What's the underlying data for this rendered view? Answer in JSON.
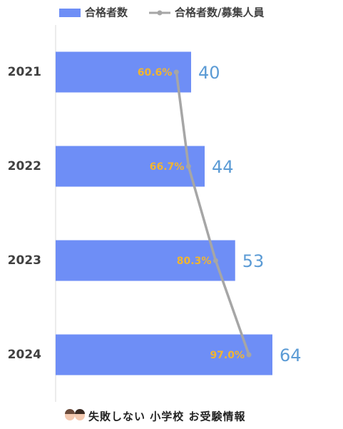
{
  "chart_data": {
    "type": "bar",
    "orientation": "horizontal",
    "categories": [
      "2021",
      "2022",
      "2023",
      "2024"
    ],
    "series": [
      {
        "name": "合格者数",
        "type": "bar",
        "color": "#6e8ef6",
        "label_color": "#5b9bd5",
        "values": [
          40,
          44,
          53,
          64
        ]
      },
      {
        "name": "合格者数/募集人員",
        "type": "line",
        "axis": "x2",
        "color": "#a6a6a6",
        "label_color": "#f2b530",
        "values": [
          60.6,
          66.7,
          80.3,
          97.0
        ],
        "value_labels": [
          "60.6%",
          "66.7%",
          "80.3%",
          "97.0%"
        ]
      }
    ],
    "xlim": [
      0,
      80
    ],
    "x2lim": [
      0,
      136
    ]
  },
  "footer": "失敗しない 小学校 お受験情報"
}
